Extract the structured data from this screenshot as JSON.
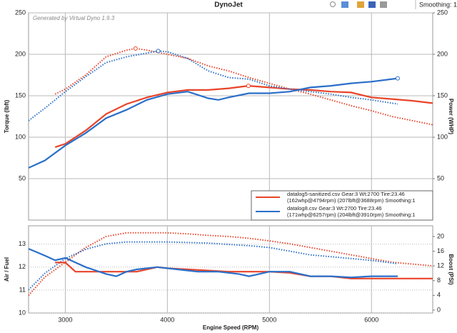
{
  "toolbar": {
    "title": "DynoJet",
    "smoothing": "Smoothing: 1"
  },
  "chart_data": [
    {
      "type": "line",
      "watermark": "Generated by Virtual Dyno 1.9.3",
      "ylabel": "Torque (lbft)",
      "y2label": "Power (WHP)",
      "xlim": [
        2640,
        6600
      ],
      "xticks": [
        3000,
        4000,
        5000,
        6000
      ],
      "ylim": [
        0,
        250
      ],
      "yticks": [
        50,
        100,
        150,
        200,
        250
      ],
      "y2lim": [
        0,
        250
      ],
      "y2ticks": [
        50,
        100,
        150,
        200,
        250
      ],
      "grid": true,
      "grid_style": "solid",
      "legend": [
        {
          "color": "#e8442a",
          "lines": [
            "datalog5-sanitized.csv Gear:3 Wt:2700 Tire:23.46",
            "(162whp@4794rpm) (207lbft@3688rpm) Smoothing:1"
          ]
        },
        {
          "color": "#2a6fc9",
          "lines": [
            "datalog8.csv Gear:3 Wt:2700 Tire:23.46",
            "(171whp@6257rpm) (204lbft@3910rpm) Smoothing:1"
          ]
        }
      ],
      "legend_position": "lower right",
      "series": [
        {
          "color": "#e8442a",
          "style": "dotted",
          "axis": "y",
          "x": [
            2900,
            3000,
            3200,
            3400,
            3600,
            3688,
            3800,
            4000,
            4200,
            4400,
            4600,
            4800,
            5000,
            5200,
            5400,
            5600,
            5800,
            6000,
            6200,
            6400,
            6600
          ],
          "values": [
            152,
            158,
            175,
            197,
            205,
            207,
            205,
            200,
            195,
            186,
            180,
            172,
            165,
            158,
            152,
            145,
            138,
            132,
            125,
            120,
            115
          ]
        },
        {
          "color": "#e8442a",
          "style": "solid",
          "axis": "y2",
          "x": [
            2900,
            3000,
            3200,
            3400,
            3600,
            3800,
            4000,
            4200,
            4400,
            4600,
            4794,
            5000,
            5200,
            5400,
            5600,
            5800,
            6000,
            6200,
            6400,
            6600
          ],
          "values": [
            88,
            92,
            108,
            128,
            140,
            148,
            154,
            157,
            157,
            159,
            162,
            160,
            158,
            157,
            155,
            154,
            148,
            146,
            144,
            141
          ]
        },
        {
          "color": "#2a6fc9",
          "style": "dotted",
          "axis": "y",
          "x": [
            2640,
            2800,
            3000,
            3200,
            3400,
            3600,
            3910,
            4000,
            4200,
            4400,
            4600,
            4800,
            5000,
            5200,
            5400,
            5600,
            5800,
            6000,
            6257
          ],
          "values": [
            120,
            135,
            155,
            173,
            190,
            197,
            204,
            203,
            195,
            180,
            172,
            170,
            162,
            158,
            155,
            152,
            148,
            145,
            140
          ]
        },
        {
          "color": "#2a6fc9",
          "style": "solid",
          "axis": "y2",
          "x": [
            2640,
            2800,
            3000,
            3200,
            3400,
            3600,
            3800,
            4000,
            4200,
            4400,
            4500,
            4600,
            4800,
            5000,
            5200,
            5400,
            5600,
            5800,
            6000,
            6257
          ],
          "values": [
            63,
            72,
            90,
            105,
            123,
            133,
            145,
            152,
            155,
            147,
            145,
            148,
            153,
            153,
            155,
            160,
            162,
            165,
            167,
            171
          ]
        }
      ]
    },
    {
      "type": "line",
      "xlabel": "Engine Speed (RPM)",
      "ylabel": "Air / Fuel",
      "y2label": "Boost (PSI)",
      "xlim": [
        2640,
        6600
      ],
      "xticks": [
        3000,
        4000,
        5000,
        6000
      ],
      "ylim": [
        10,
        13.8
      ],
      "yticks": [
        10,
        11,
        12,
        13
      ],
      "y2lim": [
        -0.8,
        22.9
      ],
      "y2ticks": [
        0,
        4,
        8,
        12,
        16,
        20
      ],
      "grid": true,
      "grid_style": "dotted",
      "series": [
        {
          "color": "#e8442a",
          "style": "dotted",
          "axis": "y2",
          "x": [
            2640,
            2800,
            3000,
            3200,
            3400,
            3600,
            3800,
            4000,
            4200,
            4400,
            4600,
            4800,
            5000,
            5200,
            5400,
            5600,
            5800,
            6000,
            6200,
            6400,
            6600
          ],
          "values": [
            4,
            9,
            13,
            17,
            20,
            21,
            21,
            21,
            20.7,
            20.3,
            20,
            19.5,
            18.8,
            18,
            17,
            16,
            15,
            14,
            13,
            12.5,
            12
          ]
        },
        {
          "color": "#2a6fc9",
          "style": "dotted",
          "axis": "y2",
          "x": [
            2640,
            2800,
            3000,
            3200,
            3400,
            3600,
            4000,
            4400,
            4800,
            5000,
            5200,
            5400,
            5600,
            5800,
            6000,
            6257
          ],
          "values": [
            5.5,
            10,
            14,
            16.5,
            18,
            18.5,
            18.5,
            18.2,
            17.5,
            17,
            16,
            15,
            14.5,
            14,
            13.5,
            12.6
          ]
        },
        {
          "color": "#e8442a",
          "style": "solid",
          "axis": "y",
          "x": [
            2900,
            3000,
            3100,
            3300,
            3500,
            3700,
            3900,
            4000,
            4200,
            4400,
            4600,
            4800,
            5000,
            5200,
            5400,
            5600,
            5800,
            6000,
            6600
          ],
          "values": [
            12.2,
            12.2,
            11.8,
            11.8,
            11.8,
            11.8,
            12.0,
            11.95,
            11.9,
            11.85,
            11.8,
            11.8,
            11.8,
            11.75,
            11.6,
            11.6,
            11.5,
            11.5,
            11.5
          ]
        },
        {
          "color": "#2a6fc9",
          "style": "solid",
          "axis": "y",
          "x": [
            2640,
            2800,
            2900,
            3000,
            3200,
            3400,
            3500,
            3600,
            3700,
            3900,
            4100,
            4300,
            4500,
            4700,
            4800,
            4900,
            5000,
            5200,
            5400,
            5600,
            5800,
            6000,
            6257
          ],
          "values": [
            12.8,
            12.5,
            12.3,
            12.4,
            12.0,
            11.7,
            11.6,
            11.8,
            11.9,
            12.0,
            11.9,
            11.8,
            11.8,
            11.7,
            11.6,
            11.7,
            11.8,
            11.8,
            11.6,
            11.6,
            11.55,
            11.6,
            11.6
          ]
        }
      ]
    }
  ]
}
